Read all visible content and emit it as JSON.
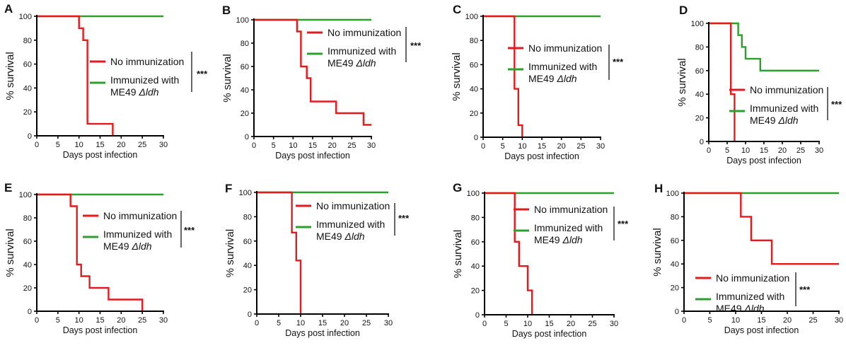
{
  "figure": {
    "series_names": [
      "No immunization",
      "Immunized with"
    ],
    "strain_prefix": "ME49 ",
    "strain_delta": "Δ",
    "strain_gene": "ldh",
    "colors": {
      "no_immunization": "#e41a1c",
      "immunized": "#2ca02c"
    }
  },
  "chart_data": [
    {
      "type": "line",
      "panel": "A",
      "xlabel": "Days post infection",
      "ylabel": "% survival",
      "xlim": [
        0,
        30
      ],
      "ylim": [
        0,
        100
      ],
      "xticks": [
        0,
        5,
        10,
        15,
        20,
        25,
        30
      ],
      "yticks": [
        0,
        20,
        40,
        60,
        80,
        100
      ],
      "significance": "***",
      "series": [
        {
          "name": "No immunization",
          "points": [
            [
              0,
              100
            ],
            [
              10,
              100
            ],
            [
              10,
              90
            ],
            [
              11,
              90
            ],
            [
              11,
              80
            ],
            [
              12,
              80
            ],
            [
              12,
              10
            ],
            [
              18,
              10
            ],
            [
              18,
              0
            ]
          ]
        },
        {
          "name": "Immunized with ME49 Δldh",
          "points": [
            [
              0,
              100
            ],
            [
              30,
              100
            ]
          ]
        }
      ]
    },
    {
      "type": "line",
      "panel": "B",
      "xlabel": "Days post infection",
      "ylabel": "% survival",
      "xlim": [
        0,
        30
      ],
      "ylim": [
        0,
        100
      ],
      "xticks": [
        0,
        5,
        10,
        15,
        20,
        25,
        30
      ],
      "yticks": [
        0,
        20,
        40,
        60,
        80,
        100
      ],
      "significance": "***",
      "series": [
        {
          "name": "No immunization",
          "points": [
            [
              0,
              100
            ],
            [
              11,
              100
            ],
            [
              11,
              90
            ],
            [
              12,
              90
            ],
            [
              12,
              60
            ],
            [
              13.5,
              60
            ],
            [
              13.5,
              50
            ],
            [
              14.5,
              50
            ],
            [
              14.5,
              30
            ],
            [
              21,
              30
            ],
            [
              21,
              20
            ],
            [
              28,
              20
            ],
            [
              28,
              10
            ],
            [
              30,
              10
            ]
          ]
        },
        {
          "name": "Immunized with ME49 Δldh",
          "points": [
            [
              0,
              100
            ],
            [
              30,
              100
            ]
          ]
        }
      ]
    },
    {
      "type": "line",
      "panel": "C",
      "xlabel": "Days post infection",
      "ylabel": "% survival",
      "xlim": [
        0,
        30
      ],
      "ylim": [
        0,
        100
      ],
      "xticks": [
        0,
        5,
        10,
        15,
        20,
        25,
        30
      ],
      "yticks": [
        0,
        20,
        40,
        60,
        80,
        100
      ],
      "significance": "***",
      "series": [
        {
          "name": "No immunization",
          "points": [
            [
              0,
              100
            ],
            [
              8,
              100
            ],
            [
              8,
              40
            ],
            [
              9,
              40
            ],
            [
              9,
              10
            ],
            [
              10,
              10
            ],
            [
              10,
              0
            ]
          ]
        },
        {
          "name": "Immunized with ME49 Δldh",
          "points": [
            [
              0,
              100
            ],
            [
              30,
              100
            ]
          ]
        }
      ]
    },
    {
      "type": "line",
      "panel": "D",
      "xlabel": "Days post infection",
      "ylabel": "% survival",
      "xlim": [
        0,
        30
      ],
      "ylim": [
        0,
        100
      ],
      "xticks": [
        0,
        5,
        10,
        15,
        20,
        25,
        30
      ],
      "yticks": [
        0,
        20,
        40,
        60,
        80,
        100
      ],
      "significance": "***",
      "series": [
        {
          "name": "No immunization",
          "points": [
            [
              0,
              100
            ],
            [
              6,
              100
            ],
            [
              6,
              40
            ],
            [
              7,
              40
            ],
            [
              7,
              0
            ]
          ]
        },
        {
          "name": "Immunized with ME49 Δldh",
          "points": [
            [
              0,
              100
            ],
            [
              8,
              100
            ],
            [
              8,
              90
            ],
            [
              9,
              90
            ],
            [
              9,
              80
            ],
            [
              10,
              80
            ],
            [
              10,
              70
            ],
            [
              14,
              70
            ],
            [
              14,
              60
            ],
            [
              30,
              60
            ]
          ]
        }
      ]
    },
    {
      "type": "line",
      "panel": "E",
      "xlabel": "Days post infection",
      "ylabel": "% survival",
      "xlim": [
        0,
        30
      ],
      "ylim": [
        0,
        100
      ],
      "xticks": [
        0,
        5,
        10,
        15,
        20,
        25,
        30
      ],
      "yticks": [
        0,
        20,
        40,
        60,
        80,
        100
      ],
      "significance": "***",
      "series": [
        {
          "name": "No immunization",
          "points": [
            [
              0,
              100
            ],
            [
              8,
              100
            ],
            [
              8,
              90
            ],
            [
              9.5,
              90
            ],
            [
              9.5,
              40
            ],
            [
              10.5,
              40
            ],
            [
              10.5,
              30
            ],
            [
              12.5,
              30
            ],
            [
              12.5,
              20
            ],
            [
              17,
              20
            ],
            [
              17,
              10
            ],
            [
              25,
              10
            ],
            [
              25,
              0
            ]
          ]
        },
        {
          "name": "Immunized with ME49 Δldh",
          "points": [
            [
              0,
              100
            ],
            [
              30,
              100
            ]
          ]
        }
      ]
    },
    {
      "type": "line",
      "panel": "F",
      "xlabel": "Days post infection",
      "ylabel": "% survival",
      "xlim": [
        0,
        30
      ],
      "ylim": [
        0,
        100
      ],
      "xticks": [
        0,
        5,
        10,
        15,
        20,
        25,
        30
      ],
      "yticks": [
        0,
        20,
        40,
        60,
        80,
        100
      ],
      "significance": "***",
      "series": [
        {
          "name": "No immunization",
          "points": [
            [
              0,
              100
            ],
            [
              8,
              100
            ],
            [
              8,
              67
            ],
            [
              9,
              67
            ],
            [
              9,
              44
            ],
            [
              10,
              44
            ],
            [
              10,
              0
            ]
          ]
        },
        {
          "name": "Immunized with ME49 Δldh",
          "points": [
            [
              0,
              100
            ],
            [
              30,
              100
            ]
          ]
        }
      ]
    },
    {
      "type": "line",
      "panel": "G",
      "xlabel": "Days post infection",
      "ylabel": "% survival",
      "xlim": [
        0,
        30
      ],
      "ylim": [
        0,
        100
      ],
      "xticks": [
        0,
        5,
        10,
        15,
        20,
        25,
        30
      ],
      "yticks": [
        0,
        20,
        40,
        60,
        80,
        100
      ],
      "significance": "***",
      "series": [
        {
          "name": "No immunization",
          "points": [
            [
              0,
              100
            ],
            [
              7,
              100
            ],
            [
              7,
              60
            ],
            [
              8,
              60
            ],
            [
              8,
              40
            ],
            [
              10,
              40
            ],
            [
              10,
              20
            ],
            [
              11,
              20
            ],
            [
              11,
              0
            ]
          ]
        },
        {
          "name": "Immunized with ME49 Δldh",
          "points": [
            [
              0,
              100
            ],
            [
              30,
              100
            ]
          ]
        }
      ]
    },
    {
      "type": "line",
      "panel": "H",
      "xlabel": "Days post infection",
      "ylabel": "% survival",
      "xlim": [
        0,
        30
      ],
      "ylim": [
        0,
        100
      ],
      "xticks": [
        0,
        5,
        10,
        15,
        20,
        25,
        30
      ],
      "yticks": [
        0,
        20,
        40,
        60,
        80,
        100
      ],
      "significance": "***",
      "series": [
        {
          "name": "No immunization",
          "points": [
            [
              0,
              100
            ],
            [
              11,
              100
            ],
            [
              11,
              80
            ],
            [
              13,
              80
            ],
            [
              13,
              60
            ],
            [
              17,
              60
            ],
            [
              17,
              40
            ],
            [
              30,
              40
            ]
          ]
        },
        {
          "name": "Immunized with ME49 Δldh",
          "points": [
            [
              0,
              100
            ],
            [
              30,
              100
            ]
          ]
        }
      ]
    }
  ]
}
